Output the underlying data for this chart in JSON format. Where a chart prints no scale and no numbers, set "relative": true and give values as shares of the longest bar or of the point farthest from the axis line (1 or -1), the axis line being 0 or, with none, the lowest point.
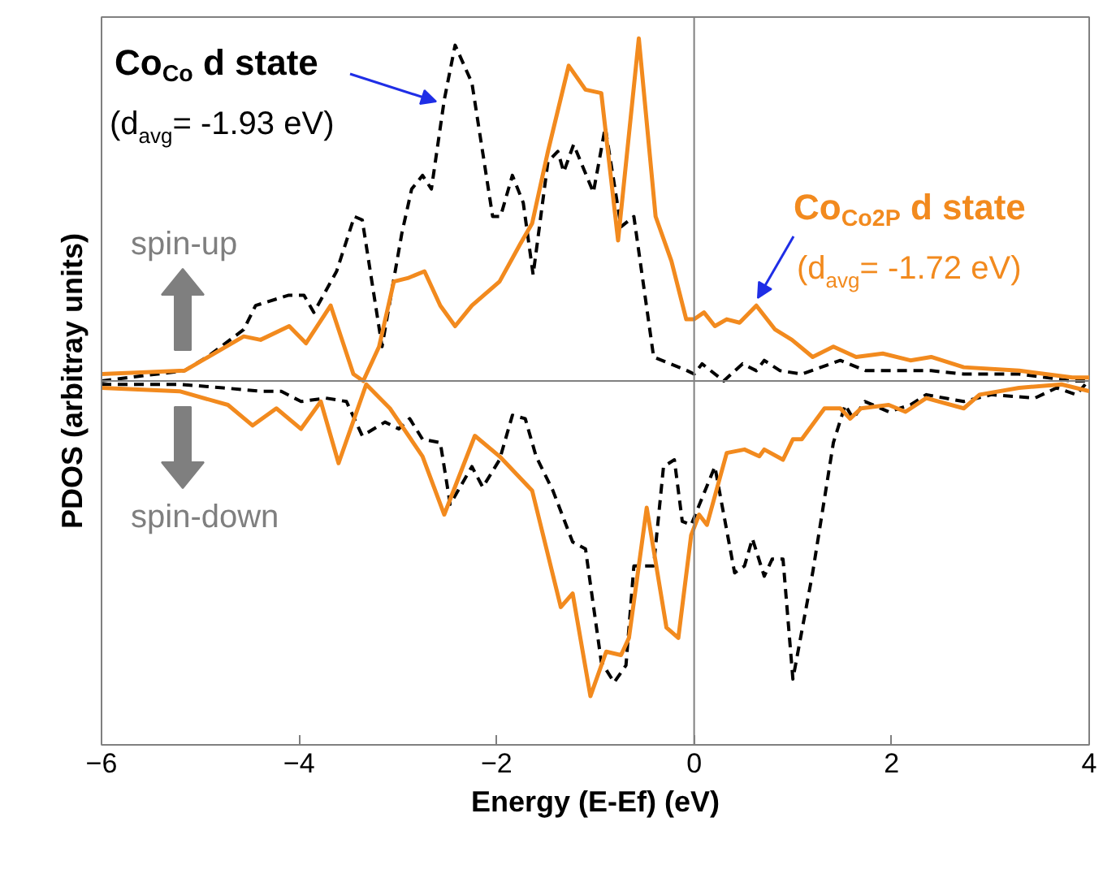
{
  "chart_data": {
    "type": "line",
    "relative": true,
    "xlabel": "Energy (E-Ef) (eV)",
    "ylabel": "PDOS (arbitray units)",
    "xlim": [
      -6,
      4
    ],
    "xticks": [
      -6,
      -4,
      -2,
      0,
      2,
      4
    ],
    "grid": false,
    "marker": "none",
    "annotations": [
      "spin-up",
      "spin-down"
    ],
    "ref_lines": [
      {
        "axis": "x",
        "value": 0,
        "color": "#808080"
      }
    ],
    "series": [
      {
        "name": "Co$_{Co}$ d state\n(d$_{avg}$= -1.93 eV)",
        "color": "#000000",
        "line_style": "dashed",
        "x": [
          -6.0,
          -5.16,
          -4.93,
          -4.56,
          -4.44,
          -4.11,
          -3.95,
          -3.85,
          -3.62,
          -3.44,
          -3.36,
          -3.16,
          -2.96,
          -2.86,
          -2.75,
          -2.66,
          -2.53,
          -2.42,
          -2.25,
          -2.04,
          -1.96,
          -1.84,
          -1.73,
          -1.63,
          -1.48,
          -1.38,
          -1.32,
          -1.22,
          -1.02,
          -0.9,
          -0.74,
          -0.61,
          -0.41,
          -0.07,
          0.0,
          0.08,
          0.3,
          0.49,
          0.63,
          0.71,
          0.87,
          1.09,
          1.48,
          1.74,
          2.19,
          2.4,
          2.73,
          3.29,
          3.83,
          4.0
        ],
        "values": [
          0.0,
          0.03,
          0.07,
          0.15,
          0.22,
          0.25,
          0.25,
          0.2,
          0.32,
          0.48,
          0.47,
          0.1,
          0.43,
          0.56,
          0.6,
          0.56,
          0.82,
          0.98,
          0.87,
          0.48,
          0.48,
          0.6,
          0.52,
          0.31,
          0.64,
          0.67,
          0.61,
          0.69,
          0.55,
          0.74,
          0.45,
          0.48,
          0.07,
          0.03,
          0.02,
          0.05,
          0.0,
          0.05,
          0.03,
          0.06,
          0.03,
          0.02,
          0.06,
          0.03,
          0.03,
          0.03,
          0.02,
          0.02,
          0.0,
          0.0
        ]
      },
      {
        "color": "#000000",
        "line_style": "dashed",
        "x": [
          -6.0,
          -5.21,
          -4.77,
          -4.39,
          -4.18,
          -3.98,
          -3.73,
          -3.52,
          -3.36,
          -3.13,
          -2.99,
          -2.88,
          -2.75,
          -2.57,
          -2.47,
          -2.25,
          -2.14,
          -1.97,
          -1.84,
          -1.71,
          -1.6,
          -1.43,
          -1.23,
          -1.1,
          -0.94,
          -0.81,
          -0.69,
          -0.61,
          -0.41,
          -0.31,
          -0.2,
          -0.12,
          -0.03,
          0.21,
          0.41,
          0.51,
          0.59,
          0.71,
          0.79,
          0.9,
          1.0,
          1.2,
          1.41,
          1.53,
          1.61,
          1.73,
          1.97,
          2.19,
          2.35,
          2.73,
          3.01,
          3.45,
          3.67,
          3.87,
          3.96
        ],
        "values": [
          -0.01,
          -0.01,
          -0.02,
          -0.03,
          -0.03,
          -0.06,
          -0.05,
          -0.06,
          -0.16,
          -0.12,
          -0.14,
          -0.11,
          -0.17,
          -0.18,
          -0.36,
          -0.25,
          -0.31,
          -0.23,
          -0.1,
          -0.11,
          -0.22,
          -0.32,
          -0.47,
          -0.49,
          -0.82,
          -0.88,
          -0.83,
          -0.54,
          -0.54,
          -0.25,
          -0.23,
          -0.41,
          -0.42,
          -0.25,
          -0.56,
          -0.54,
          -0.46,
          -0.57,
          -0.52,
          -0.52,
          -0.87,
          -0.56,
          -0.18,
          -0.07,
          -0.11,
          -0.06,
          -0.09,
          -0.07,
          -0.04,
          -0.06,
          -0.04,
          -0.05,
          -0.02,
          -0.04,
          -0.01
        ]
      },
      {
        "name": "Co$_{Co2P}$ d state\n(d$_{avg}$= -1.72 eV)",
        "color": "#f28a1e",
        "line_style": "solid",
        "x": [
          -6.0,
          -5.16,
          -4.56,
          -4.39,
          -4.1,
          -3.93,
          -3.68,
          -3.45,
          -3.35,
          -3.19,
          -3.04,
          -2.9,
          -2.73,
          -2.57,
          -2.42,
          -2.25,
          -1.97,
          -1.76,
          -1.64,
          -1.48,
          -1.27,
          -1.1,
          -0.94,
          -0.77,
          -0.56,
          -0.39,
          -0.23,
          -0.08,
          0.0,
          0.1,
          0.21,
          0.33,
          0.46,
          0.63,
          0.82,
          0.99,
          1.2,
          1.41,
          1.64,
          1.91,
          2.19,
          2.4,
          2.73,
          3.29,
          3.83,
          4.0
        ],
        "values": [
          0.02,
          0.03,
          0.13,
          0.12,
          0.16,
          0.11,
          0.22,
          0.02,
          0.0,
          0.1,
          0.29,
          0.3,
          0.32,
          0.22,
          0.16,
          0.22,
          0.29,
          0.4,
          0.46,
          0.67,
          0.92,
          0.85,
          0.84,
          0.41,
          1.0,
          0.48,
          0.35,
          0.18,
          0.18,
          0.2,
          0.16,
          0.18,
          0.17,
          0.22,
          0.15,
          0.12,
          0.07,
          0.1,
          0.07,
          0.08,
          0.06,
          0.07,
          0.04,
          0.03,
          0.01,
          0.01
        ]
      },
      {
        "color": "#f28a1e",
        "line_style": "solid",
        "x": [
          -6.0,
          -5.21,
          -4.72,
          -4.47,
          -4.23,
          -3.98,
          -3.78,
          -3.6,
          -3.32,
          -3.08,
          -2.75,
          -2.53,
          -2.22,
          -1.97,
          -1.64,
          -1.35,
          -1.23,
          -1.05,
          -0.89,
          -0.74,
          -0.66,
          -0.48,
          -0.28,
          -0.16,
          -0.03,
          0.05,
          0.13,
          0.33,
          0.51,
          0.66,
          0.71,
          0.9,
          1.0,
          1.09,
          1.32,
          1.48,
          1.58,
          1.69,
          1.97,
          2.14,
          2.35,
          2.73,
          2.89,
          3.29,
          3.72,
          4.0
        ],
        "values": [
          -0.02,
          -0.03,
          -0.07,
          -0.13,
          -0.08,
          -0.14,
          -0.06,
          -0.24,
          -0.01,
          -0.08,
          -0.22,
          -0.39,
          -0.16,
          -0.22,
          -0.32,
          -0.66,
          -0.62,
          -0.92,
          -0.79,
          -0.8,
          -0.75,
          -0.37,
          -0.72,
          -0.75,
          -0.45,
          -0.39,
          -0.42,
          -0.21,
          -0.2,
          -0.22,
          -0.2,
          -0.23,
          -0.17,
          -0.17,
          -0.08,
          -0.08,
          -0.11,
          -0.08,
          -0.07,
          -0.09,
          -0.05,
          -0.08,
          -0.04,
          -0.02,
          -0.01,
          -0.03
        ]
      }
    ]
  }
}
